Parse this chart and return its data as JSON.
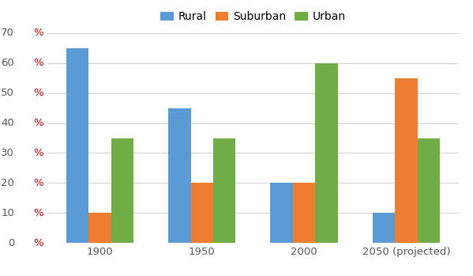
{
  "categories": [
    "1900",
    "1950",
    "2000",
    "2050 (projected)"
  ],
  "series": {
    "Rural": [
      65,
      45,
      20,
      10
    ],
    "Suburban": [
      10,
      20,
      20,
      55
    ],
    "Urban": [
      35,
      35,
      60,
      35
    ]
  },
  "colors": {
    "Rural": "#5B9BD5",
    "Suburban": "#ED7D31",
    "Urban": "#70AD47"
  },
  "ylim": [
    0,
    70
  ],
  "yticks": [
    0,
    10,
    20,
    30,
    40,
    50,
    60,
    70
  ],
  "background_color": "#FFFFFF",
  "plot_bg_color": "#FFFFFF",
  "grid_color": "#D0D0D0",
  "legend_loc": "upper center",
  "legend_ncol": 3,
  "bar_width": 0.22,
  "figsize": [
    5.99,
    3.49
  ],
  "dpi": 100,
  "ytick_label_color": "#C00000",
  "xtick_label_color": "#808080",
  "ytick_number_color": "#595959"
}
